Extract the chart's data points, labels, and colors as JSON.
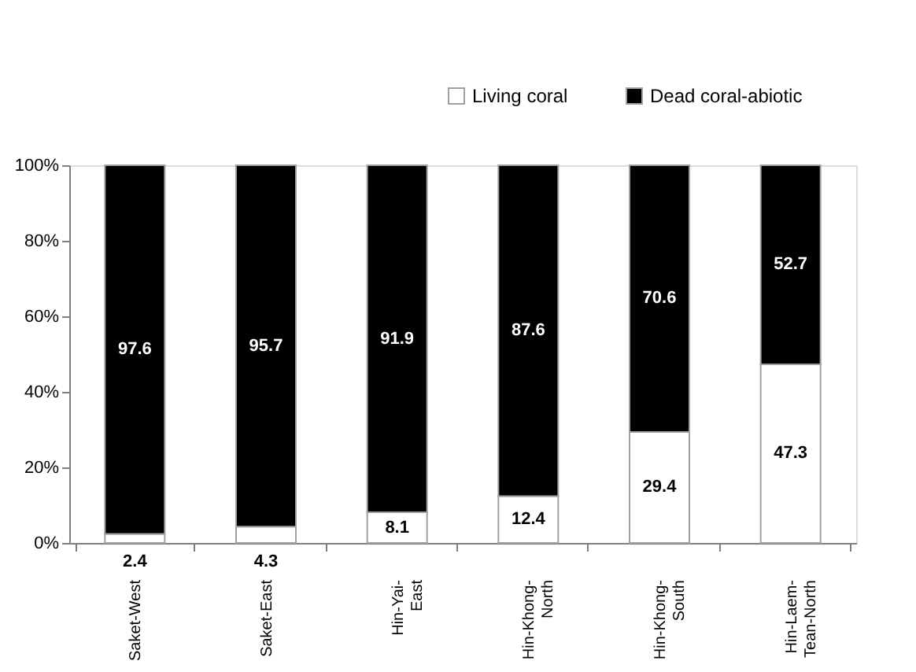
{
  "chart_data": {
    "type": "bar",
    "stacked": true,
    "categories": [
      "Saket-West",
      "Saket-East",
      "Hin-Yai-East",
      "Hin-Khong-North",
      "Hin-Khong-South",
      "Hin-Laem-Tean-North"
    ],
    "series": [
      {
        "name": "Living coral",
        "color": "#ffffff",
        "values": [
          2.4,
          4.3,
          8.1,
          12.4,
          29.4,
          47.3
        ]
      },
      {
        "name": "Dead coral-abiotic",
        "color": "#000000",
        "values": [
          97.6,
          95.7,
          91.9,
          87.6,
          70.6,
          52.7
        ]
      }
    ],
    "ylim": [
      0,
      100
    ],
    "yticks": [
      {
        "value": 0,
        "label": "0%"
      },
      {
        "value": 20,
        "label": "20%"
      },
      {
        "value": 40,
        "label": "40%"
      },
      {
        "value": 60,
        "label": "60%"
      },
      {
        "value": 80,
        "label": "80%"
      },
      {
        "value": 100,
        "label": "100%"
      }
    ],
    "data_labels": true,
    "legend": "top right",
    "grid": false
  }
}
